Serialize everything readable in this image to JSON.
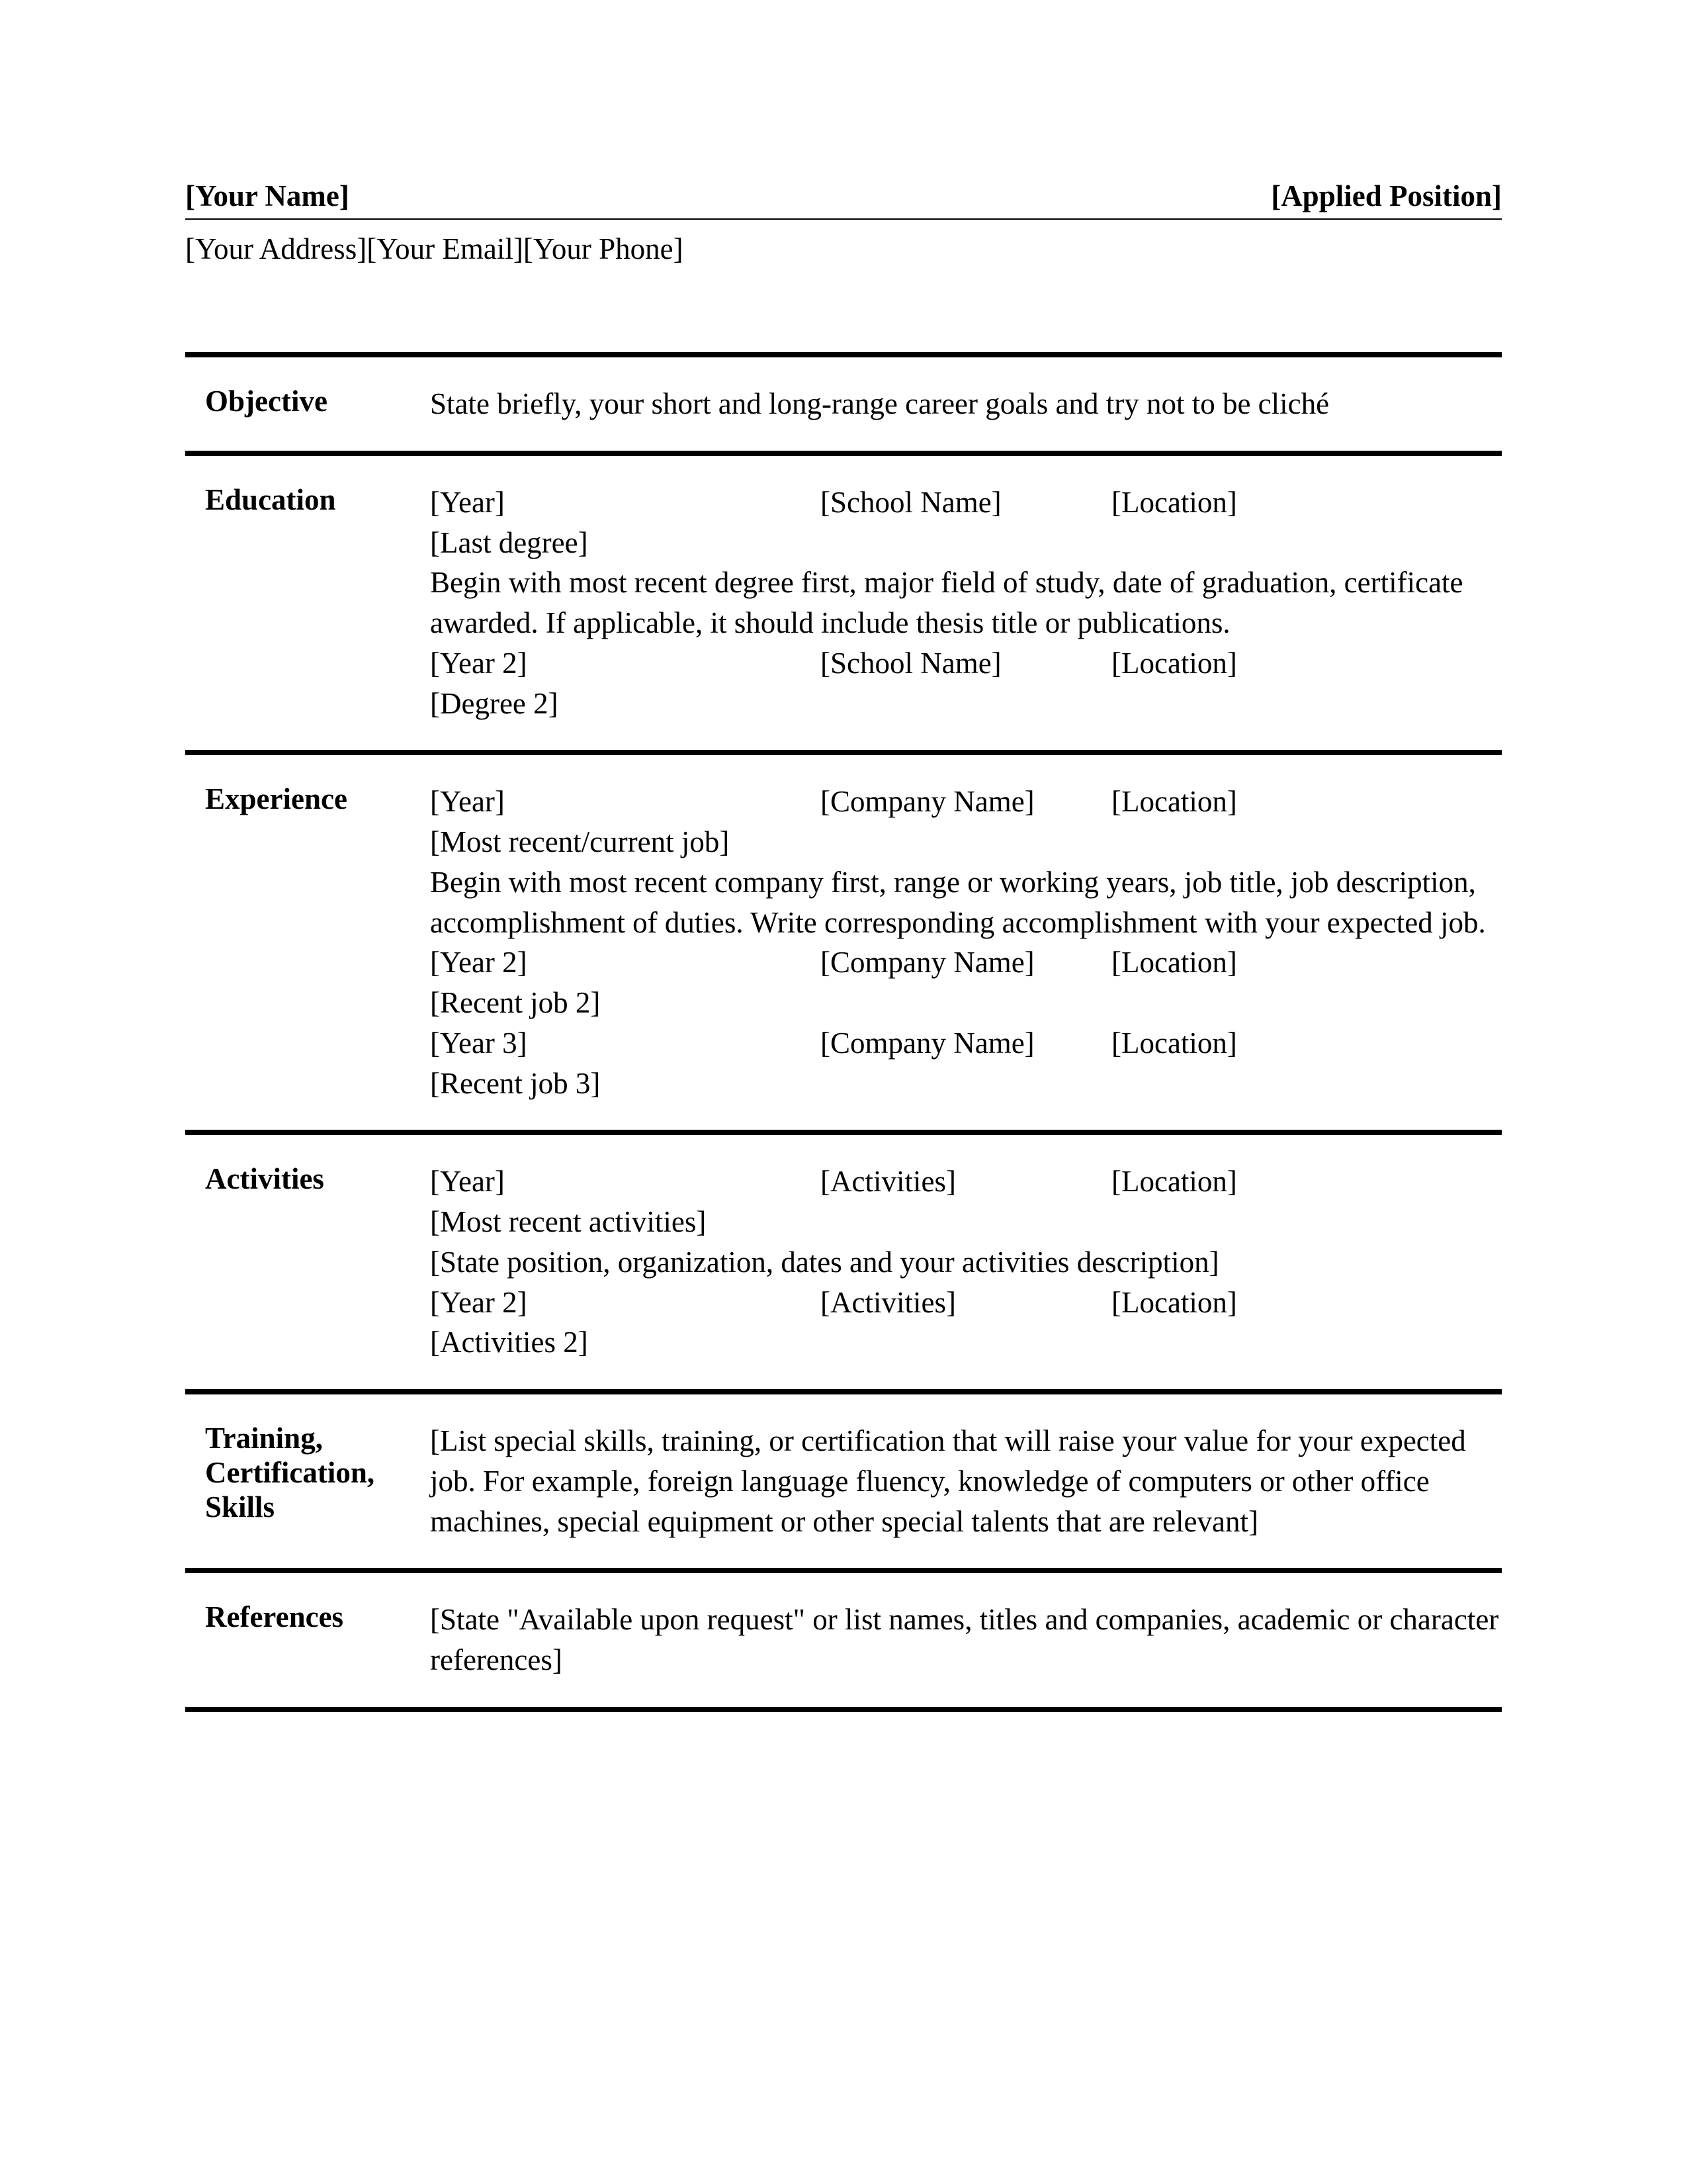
{
  "header": {
    "name": "[Your Name]",
    "position": "[Applied Position]",
    "address": "[Your Address]",
    "email": "[Your Email]",
    "phone": "[Your Phone]"
  },
  "objective": {
    "label": "Objective",
    "text": "State briefly, your short and long-range career goals and try not to be cliché"
  },
  "education": {
    "label": "Education",
    "entry1": {
      "year": "[Year]",
      "school": "[School Name]",
      "location": "[Location]",
      "degree": "[Last degree]"
    },
    "description": "Begin with most recent degree first, major field of study, date of graduation, certificate awarded. If applicable, it should include thesis title or publications.",
    "entry2": {
      "year": "[Year 2]",
      "school": "[School Name]",
      "location": "[Location]",
      "degree": "[Degree 2]"
    }
  },
  "experience": {
    "label": "Experience",
    "entry1": {
      "year": "[Year]",
      "company": "[Company Name]",
      "location": "[Location]",
      "job": "[Most recent/current job]"
    },
    "description": "Begin with most recent company first, range or working years, job title, job description, accomplishment of duties. Write corresponding accomplishment with your expected job.",
    "entry2": {
      "year": "[Year 2]",
      "company": "[Company Name]",
      "location": "[Location]",
      "job": "[Recent job 2]"
    },
    "entry3": {
      "year": "[Year 3]",
      "company": "[Company Name]",
      "location": "[Location]",
      "job": "[Recent job 3]"
    }
  },
  "activities": {
    "label": "Activities",
    "entry1": {
      "year": "[Year]",
      "activity": "[Activities]",
      "location": "[Location]",
      "detail": "[Most recent activities]"
    },
    "description": "[State position, organization, dates  and your activities description]",
    "entry2": {
      "year": "[Year 2]",
      "activity": "[Activities]",
      "location": "[Location]",
      "detail": "[Activities 2]"
    }
  },
  "training": {
    "label": "Training, Certification, Skills",
    "text": "[List special skills, training, or certification that will raise your value for your expected job. For example, foreign language fluency, knowledge of computers or other office machines, special equipment or other special talents that are relevant]"
  },
  "references": {
    "label": "References",
    "text": "[State \"Available upon request\" or list names, titles and companies, academic or character references]"
  }
}
